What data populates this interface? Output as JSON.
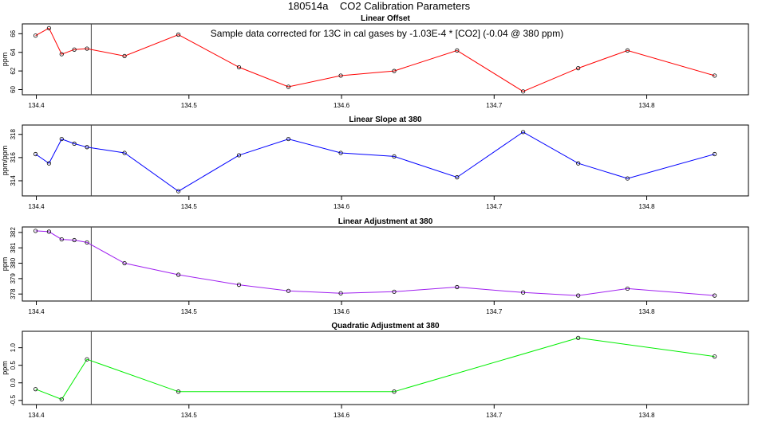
{
  "page": {
    "title": "180514a    CO2 Calibration Parameters"
  },
  "chart_data": [
    {
      "type": "line",
      "title": "Linear Offset",
      "annotation": "Sample data corrected for 13C in cal gases by -1.03E-4 * [CO2] (-0.04 @ 380 ppm)",
      "ylabel": "ppm",
      "xlim": [
        134.3945,
        134.8635
      ],
      "ylim": [
        59.7,
        66.8
      ],
      "xticks": [
        134.4,
        134.5,
        134.6,
        134.7,
        134.8
      ],
      "xticklabels": [
        "134.4",
        "134.5",
        "134.6",
        "134.7",
        "134.8"
      ],
      "yticks": [
        60,
        62,
        64,
        66
      ],
      "yticklabels": [
        "60",
        "62",
        "64",
        "66"
      ],
      "vline_x": 134.436,
      "color": "#ff0000",
      "series": [
        {
          "x": [
            134.3995,
            134.4083,
            134.4166,
            134.4249,
            134.4332,
            134.4578,
            134.4931,
            134.5328,
            134.5652,
            134.5995,
            134.6345,
            134.6757,
            134.719,
            134.7551,
            134.7874,
            134.8445
          ],
          "y": [
            65.8,
            66.6,
            63.8,
            64.3,
            64.4,
            63.6,
            65.9,
            62.4,
            60.3,
            61.5,
            62.0,
            64.2,
            59.8,
            62.3,
            64.2,
            61.5
          ]
        }
      ]
    },
    {
      "type": "line",
      "title": "Linear Slope at 380",
      "ylabel": "ppm/ppm",
      "xlim": [
        134.3945,
        134.8635
      ],
      "ylim": [
        312.9,
        318.6
      ],
      "xticks": [
        134.4,
        134.5,
        134.6,
        134.7,
        134.8
      ],
      "xticklabels": [
        "134.4",
        "134.5",
        "134.6",
        "134.7",
        "134.8"
      ],
      "yticks": [
        314,
        316,
        318
      ],
      "yticklabels": [
        "314",
        "316",
        "318"
      ],
      "vline_x": 134.436,
      "color": "#0000ff",
      "series": [
        {
          "x": [
            134.3995,
            134.4083,
            134.4166,
            134.4249,
            134.4332,
            134.4578,
            134.4931,
            134.5328,
            134.5652,
            134.5995,
            134.6345,
            134.6757,
            134.719,
            134.7551,
            134.7874,
            134.8445
          ],
          "y": [
            316.3,
            315.5,
            317.6,
            317.2,
            316.9,
            316.4,
            313.1,
            316.2,
            317.6,
            316.4,
            316.1,
            314.3,
            318.2,
            315.5,
            314.2,
            316.3
          ]
        }
      ]
    },
    {
      "type": "line",
      "title": "Linear Adjustment at 380",
      "ylabel": "ppm",
      "xlim": [
        134.3945,
        134.8635
      ],
      "ylim": [
        377.7,
        382.2
      ],
      "xticks": [
        134.4,
        134.5,
        134.6,
        134.7,
        134.8
      ],
      "xticklabels": [
        "134.4",
        "134.5",
        "134.6",
        "134.7",
        "134.8"
      ],
      "yticks": [
        378,
        379,
        380,
        381,
        382
      ],
      "yticklabels": [
        "378",
        "379",
        "380",
        "381",
        "382"
      ],
      "vline_x": 134.436,
      "color": "#a020f0",
      "series": [
        {
          "x": [
            134.3995,
            134.4083,
            134.4166,
            134.4249,
            134.4332,
            134.4578,
            134.4931,
            134.5328,
            134.5652,
            134.5995,
            134.6345,
            134.6757,
            134.719,
            134.7551,
            134.7874,
            134.8445
          ],
          "y": [
            382.1,
            382.05,
            381.55,
            381.5,
            381.35,
            380.0,
            379.25,
            378.6,
            378.2,
            378.05,
            378.15,
            378.45,
            378.1,
            377.9,
            378.35,
            377.9
          ]
        }
      ]
    },
    {
      "type": "line",
      "title": "Quadratic Adjustment at 380",
      "ylabel": "ppm",
      "xlim": [
        134.3945,
        134.8635
      ],
      "ylim": [
        -0.55,
        1.4
      ],
      "xticks": [
        134.4,
        134.5,
        134.6,
        134.7,
        134.8
      ],
      "xticklabels": [
        "134.4",
        "134.5",
        "134.6",
        "134.7",
        "134.8"
      ],
      "yticks": [
        -0.5,
        0.0,
        0.5,
        1.0
      ],
      "yticklabels": [
        "-0.5",
        "0.0",
        "0.5",
        "1.0"
      ],
      "vline_x": 134.436,
      "color": "#00ee00",
      "series": [
        {
          "x": [
            134.3995,
            134.4166,
            134.4332,
            134.4931,
            134.6345,
            134.7551,
            134.8445
          ],
          "y": [
            -0.18,
            -0.47,
            0.67,
            -0.25,
            -0.25,
            1.28,
            0.75
          ]
        }
      ]
    }
  ]
}
